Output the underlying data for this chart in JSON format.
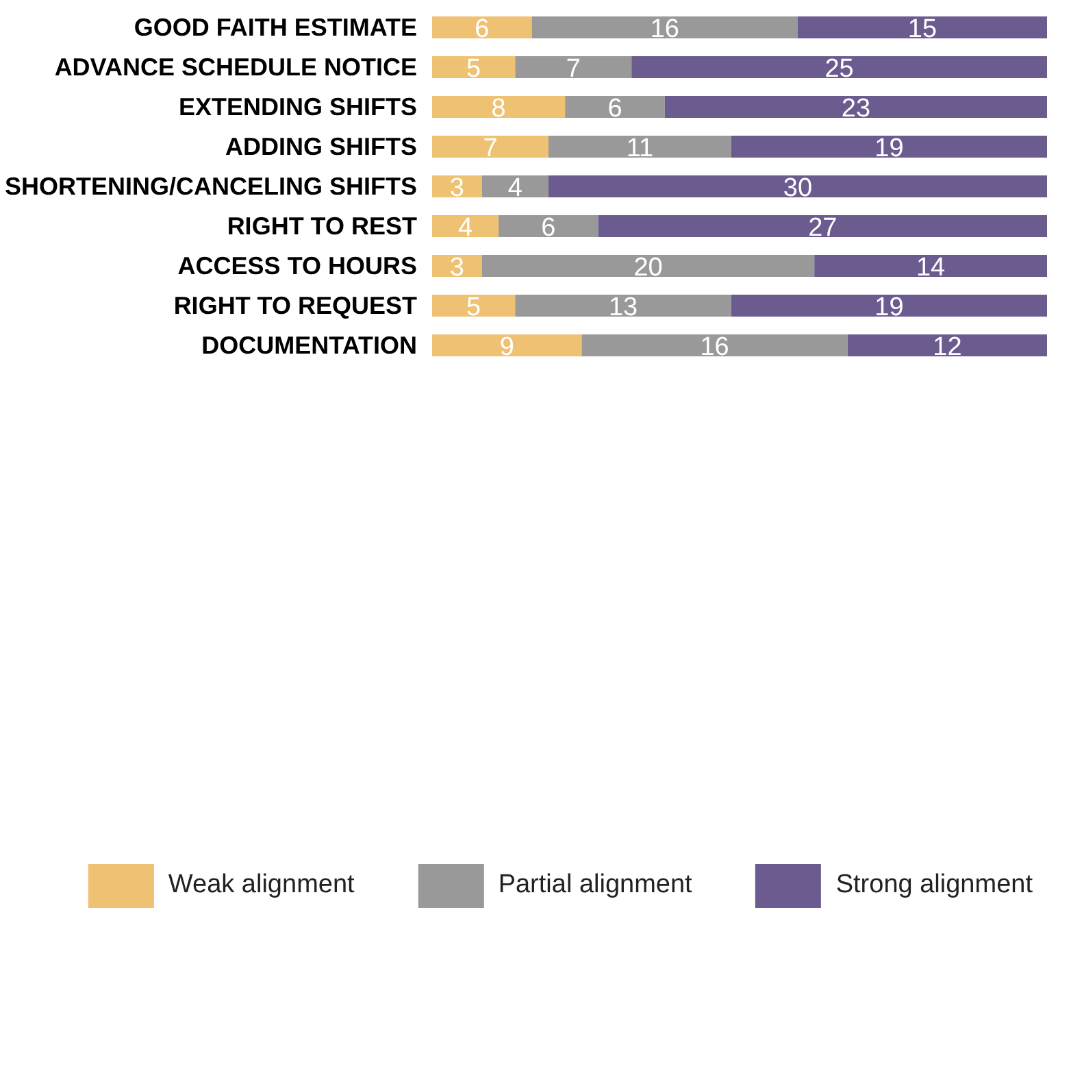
{
  "chart_data": {
    "type": "bar",
    "orientation": "horizontal",
    "stacked": true,
    "data_labels": true,
    "legend": "bottom",
    "categories": [
      "GOOD FAITH ESTIMATE",
      "ADVANCE SCHEDULE NOTICE",
      "EXTENDING SHIFTS",
      "ADDING SHIFTS",
      "SHORTENING/CANCELING SHIFTS",
      "RIGHT TO REST",
      "ACCESS TO HOURS",
      "RIGHT TO REQUEST",
      "DOCUMENTATION"
    ],
    "series": [
      {
        "name": "Weak alignment",
        "color": "#efc172",
        "values": [
          6,
          5,
          8,
          7,
          3,
          4,
          3,
          5,
          9
        ]
      },
      {
        "name": "Partial alignment",
        "color": "#999999",
        "values": [
          16,
          7,
          6,
          11,
          4,
          6,
          20,
          13,
          16
        ]
      },
      {
        "name": "Strong alignment",
        "color": "#6b5b8e",
        "values": [
          15,
          25,
          23,
          19,
          30,
          27,
          14,
          19,
          12
        ]
      }
    ]
  }
}
